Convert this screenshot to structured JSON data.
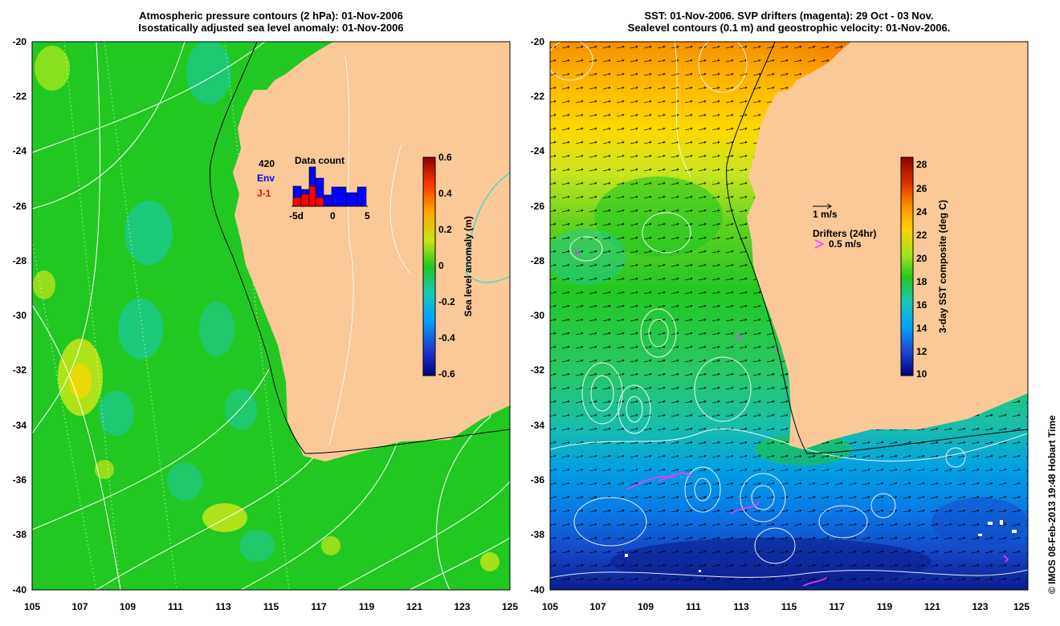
{
  "left_panel": {
    "title_line1": "Atmospheric pressure contours (2 hPa): 01-Nov-2006",
    "title_line2": "Isostatically adjusted sea level anomaly: 01-Nov-2006",
    "colorbar": {
      "label": "Sea level anomaly (m)",
      "ticks": [
        "0.6",
        "0.4",
        "0.2",
        "0",
        "-0.2",
        "-0.4",
        "-0.6"
      ]
    },
    "inset": {
      "count": "420",
      "env_label": "Env",
      "j1_label": "J-1",
      "title": "Data count",
      "x_ticks": [
        "-5d",
        "0",
        "5"
      ],
      "env_color": "#0000ff",
      "j1_color": "#ff0000"
    }
  },
  "right_panel": {
    "title_line1": "SST: 01-Nov-2006. SVP drifters (magenta): 29 Oct - 03 Nov.",
    "title_line2": "Sealevel contours (0.1 m) and geostrophic velocity: 01-Nov-2006.",
    "colorbar": {
      "label": "3-day SST composite (deg C)",
      "ticks": [
        "28",
        "26",
        "24",
        "22",
        "20",
        "18",
        "16",
        "14",
        "12",
        "10"
      ]
    },
    "legend": {
      "velocity_label": "1 m/s",
      "drifters_label": "Drifters (24hr)",
      "drifters_speed": "0.5 m/s"
    }
  },
  "axes": {
    "lat_ticks": [
      "-20",
      "-22",
      "-24",
      "-26",
      "-28",
      "-30",
      "-32",
      "-34",
      "-36",
      "-38",
      "-40"
    ],
    "lon_ticks": [
      "105",
      "107",
      "109",
      "111",
      "113",
      "115",
      "117",
      "119",
      "121",
      "123",
      "125"
    ]
  },
  "credit": "© IMOS 08-Feb-2013 19:48 Hobart Time",
  "colors": {
    "land": "#fbc898",
    "ocean_green": "#22c822",
    "drifter": "#ff33ff"
  }
}
